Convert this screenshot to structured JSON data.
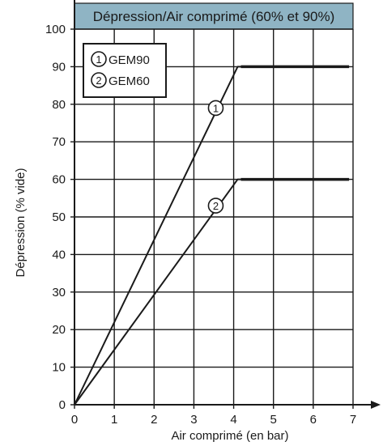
{
  "chart_data": {
    "type": "line",
    "title": "Dépression/Air comprimé (60% et 90%)",
    "xlabel": "Air comprimé (en bar)",
    "ylabel": "Dépression (% vide)",
    "xlim": [
      0,
      7
    ],
    "ylim": [
      0,
      100
    ],
    "x_ticks": [
      0,
      1,
      2,
      3,
      4,
      5,
      6,
      7
    ],
    "y_ticks": [
      0,
      10,
      20,
      30,
      40,
      50,
      60,
      70,
      80,
      90,
      100
    ],
    "grid": true,
    "legend_position": "top-left",
    "title_background": "#8fb4c4",
    "line_color": "#1a1a1a",
    "series": [
      {
        "marker": "1",
        "name": "GEM90",
        "points": [
          [
            0,
            0
          ],
          [
            4.1,
            90
          ],
          [
            6.9,
            90
          ]
        ],
        "label_at": [
          3.55,
          79
        ]
      },
      {
        "marker": "2",
        "name": "GEM60",
        "points": [
          [
            0,
            0
          ],
          [
            4.1,
            60
          ],
          [
            6.9,
            60
          ]
        ],
        "label_at": [
          3.55,
          53
        ]
      }
    ]
  }
}
